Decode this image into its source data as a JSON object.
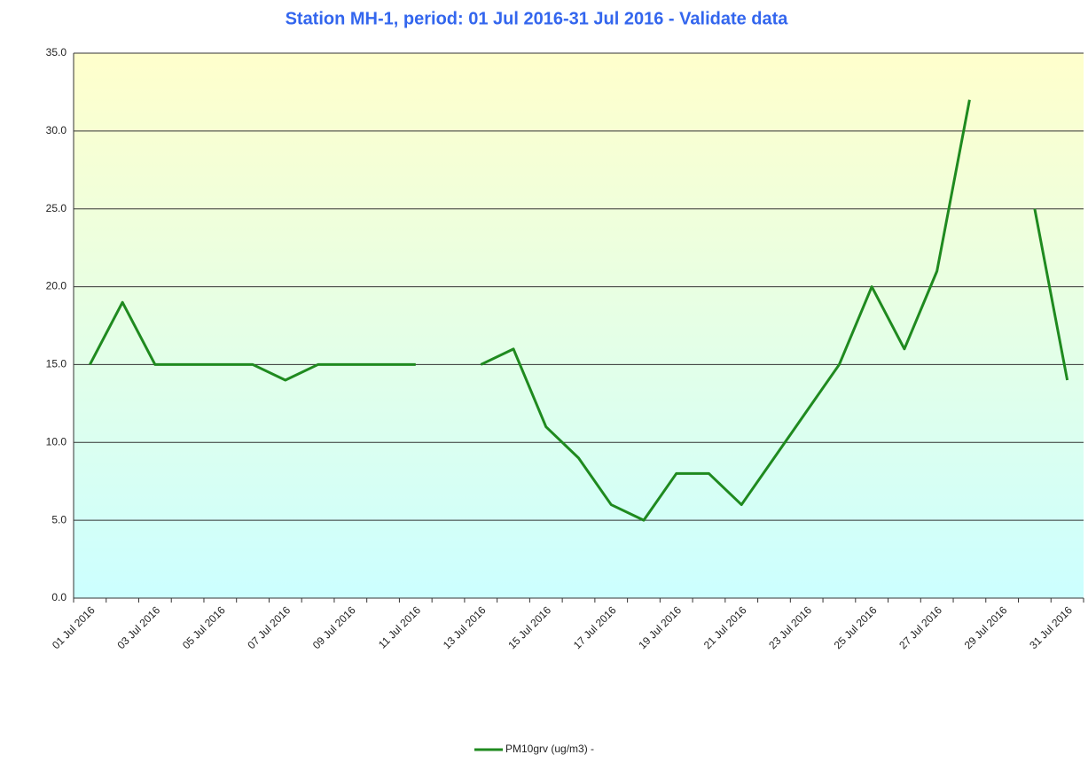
{
  "chart_data": {
    "type": "line",
    "title": "Station MH-1, period: 01 Jul 2016-31 Jul 2016 - Validate data",
    "categories": [
      "01 Jul 2016",
      null,
      "03 Jul 2016",
      null,
      "05 Jul 2016",
      null,
      "07 Jul 2016",
      null,
      "09 Jul 2016",
      null,
      "11 Jul 2016",
      null,
      "13 Jul 2016",
      null,
      "15 Jul 2016",
      null,
      "17 Jul 2016",
      null,
      "19 Jul 2016",
      null,
      "21 Jul 2016",
      null,
      "23 Jul 2016",
      null,
      "25 Jul 2016",
      null,
      "27 Jul 2016",
      null,
      "29 Jul 2016",
      null,
      "31 Jul 2016"
    ],
    "series": [
      {
        "name": "PM10grv (ug/m3) -",
        "color": "#1f8a1f",
        "values": [
          15,
          19,
          15,
          15,
          15,
          15,
          14,
          15,
          15,
          15,
          15,
          null,
          15,
          16,
          11,
          9,
          6,
          5,
          8,
          8,
          6,
          9,
          12,
          15,
          20,
          16,
          21,
          32,
          null,
          25,
          14
        ]
      }
    ],
    "ylim": [
      0,
      35
    ],
    "yticks": [
      {
        "value": 0,
        "label": "0.0"
      },
      {
        "value": 5,
        "label": "5.0"
      },
      {
        "value": 10,
        "label": "10.0"
      },
      {
        "value": 15,
        "label": "15.0"
      },
      {
        "value": 20,
        "label": "20.0"
      },
      {
        "value": 25,
        "label": "25.0"
      },
      {
        "value": 30,
        "label": "30.0"
      },
      {
        "value": 35,
        "label": "35.0"
      }
    ],
    "grid": true,
    "legend": "bottom"
  }
}
